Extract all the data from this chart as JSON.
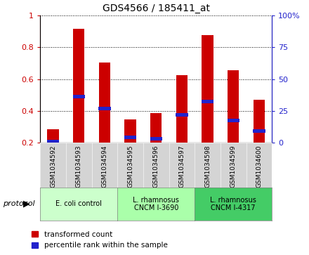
{
  "title": "GDS4566 / 185411_at",
  "samples": [
    "GSM1034592",
    "GSM1034593",
    "GSM1034594",
    "GSM1034595",
    "GSM1034596",
    "GSM1034597",
    "GSM1034598",
    "GSM1034599",
    "GSM1034600"
  ],
  "transformed_count": [
    0.285,
    0.915,
    0.705,
    0.345,
    0.385,
    0.625,
    0.875,
    0.655,
    0.47
  ],
  "percentile_rank": [
    0.21,
    0.49,
    0.415,
    0.235,
    0.225,
    0.375,
    0.46,
    0.34,
    0.275
  ],
  "bar_bottom": 0.2,
  "ylim": [
    0.2,
    1.0
  ],
  "yticks_left": [
    0.2,
    0.4,
    0.6,
    0.8,
    1.0
  ],
  "yticks_right": [
    0,
    25,
    50,
    75,
    100
  ],
  "ytick_labels_left": [
    "0.2",
    "0.4",
    "0.6",
    "0.8",
    "1"
  ],
  "ytick_labels_right": [
    "0",
    "25",
    "50",
    "75",
    "100%"
  ],
  "left_axis_color": "#cc0000",
  "right_axis_color": "#2222cc",
  "bar_color_red": "#cc0000",
  "bar_color_blue": "#2222cc",
  "groups": [
    {
      "label": "E. coli control",
      "start": 0,
      "end": 3,
      "color": "#ccffcc"
    },
    {
      "label": "L. rhamnosus\nCNCM I-3690",
      "start": 3,
      "end": 6,
      "color": "#aaffaa"
    },
    {
      "label": "L. rhamnosus\nCNCM I-4317",
      "start": 6,
      "end": 9,
      "color": "#44cc66"
    }
  ],
  "protocol_label": "protocol",
  "legend_red_label": "transformed count",
  "legend_blue_label": "percentile rank within the sample",
  "fig_width": 4.4,
  "fig_height": 3.63,
  "dpi": 100
}
